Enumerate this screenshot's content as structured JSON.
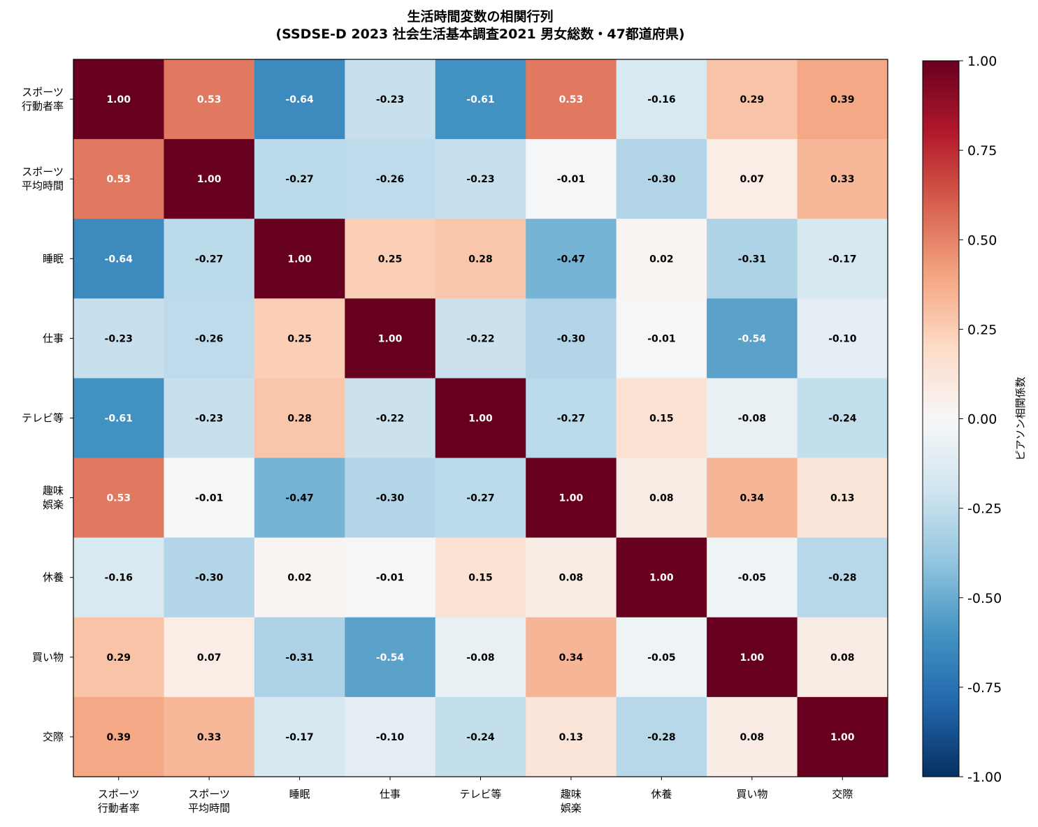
{
  "chart_data": {
    "type": "heatmap",
    "title": [
      "生活時間変数の相関行列",
      "(SSDSE-D 2023 社会生活基本調査2021 男女総数・47都道府県)"
    ],
    "x_labels": [
      [
        "スポーツ",
        "行動者率"
      ],
      [
        "スポーツ",
        "平均時間"
      ],
      [
        "睡眠"
      ],
      [
        "仕事"
      ],
      [
        "テレビ等"
      ],
      [
        "趣味",
        "娯楽"
      ],
      [
        "休養"
      ],
      [
        "買い物"
      ],
      [
        "交際"
      ]
    ],
    "y_labels": [
      [
        "スポーツ",
        "行動者率"
      ],
      [
        "スポーツ",
        "平均時間"
      ],
      [
        "睡眠"
      ],
      [
        "仕事"
      ],
      [
        "テレビ等"
      ],
      [
        "趣味",
        "娯楽"
      ],
      [
        "休養"
      ],
      [
        "買い物"
      ],
      [
        "交際"
      ]
    ],
    "matrix": [
      [
        1.0,
        0.53,
        -0.64,
        -0.23,
        -0.61,
        0.53,
        -0.16,
        0.29,
        0.39
      ],
      [
        0.53,
        1.0,
        -0.27,
        -0.26,
        -0.23,
        -0.01,
        -0.3,
        0.07,
        0.33
      ],
      [
        -0.64,
        -0.27,
        1.0,
        0.25,
        0.28,
        -0.47,
        0.02,
        -0.31,
        -0.17
      ],
      [
        -0.23,
        -0.26,
        0.25,
        1.0,
        -0.22,
        -0.3,
        -0.01,
        -0.54,
        -0.1
      ],
      [
        -0.61,
        -0.23,
        0.28,
        -0.22,
        1.0,
        -0.27,
        0.15,
        -0.08,
        -0.24
      ],
      [
        0.53,
        -0.01,
        -0.47,
        -0.3,
        -0.27,
        1.0,
        0.08,
        0.34,
        0.13
      ],
      [
        -0.16,
        -0.3,
        0.02,
        -0.01,
        0.15,
        0.08,
        1.0,
        -0.05,
        -0.28
      ],
      [
        0.29,
        0.07,
        -0.31,
        -0.54,
        -0.08,
        0.34,
        -0.05,
        1.0,
        0.08
      ],
      [
        0.39,
        0.33,
        -0.17,
        -0.1,
        -0.24,
        0.13,
        -0.28,
        0.08,
        1.0
      ]
    ],
    "value_range": [
      -1.0,
      1.0
    ],
    "colormap": "RdBu_r",
    "colorbar": {
      "label": "ピアソン相関係数",
      "ticks": [
        -1.0,
        -0.75,
        -0.5,
        -0.25,
        0.0,
        0.25,
        0.5,
        0.75,
        1.0
      ],
      "tick_labels": [
        "-1.00",
        "-0.75",
        "-0.50",
        "-0.25",
        "0.00",
        "0.25",
        "0.50",
        "0.75",
        "1.00"
      ]
    }
  }
}
